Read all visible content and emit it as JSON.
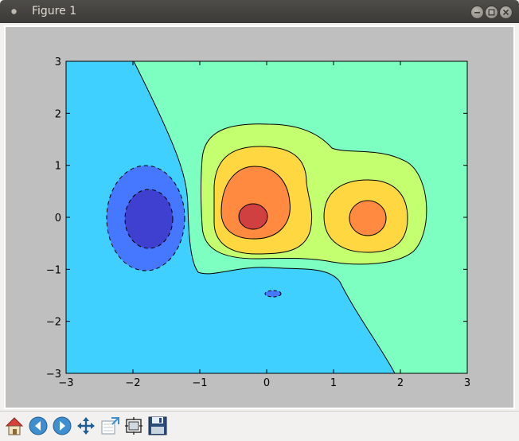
{
  "window": {
    "title": "Figure 1"
  },
  "titlebar_buttons": [
    {
      "name": "minimize-button",
      "icon": "minus-icon"
    },
    {
      "name": "maximize-button",
      "icon": "square-icon"
    },
    {
      "name": "close-button",
      "icon": "x-icon"
    }
  ],
  "toolbar": {
    "buttons": [
      {
        "name": "home-button",
        "icon": "home-icon"
      },
      {
        "name": "back-button",
        "icon": "arrow-left-icon"
      },
      {
        "name": "forward-button",
        "icon": "arrow-right-icon"
      },
      {
        "name": "pan-button",
        "icon": "move-icon"
      },
      {
        "name": "zoom-button",
        "icon": "zoom-rect-icon"
      },
      {
        "name": "subplots-button",
        "icon": "subplots-icon"
      },
      {
        "name": "save-button",
        "icon": "floppy-icon"
      }
    ]
  },
  "chart_data": {
    "type": "contour",
    "xlim": [
      -3,
      3
    ],
    "ylim": [
      -3,
      3
    ],
    "x_ticks": [
      "−3",
      "−2",
      "−1",
      "0",
      "1",
      "2",
      "3"
    ],
    "y_ticks": [
      "3",
      "2",
      "1",
      "0",
      "−1",
      "−2",
      "−3"
    ],
    "level_colors": [
      "#4040d0",
      "#4678ff",
      "#40d0ff",
      "#7dffc2",
      "#c4ff70",
      "#ffd740",
      "#ff8a40",
      "#d04040"
    ],
    "negative_contours": "dashed",
    "grid": false
  }
}
